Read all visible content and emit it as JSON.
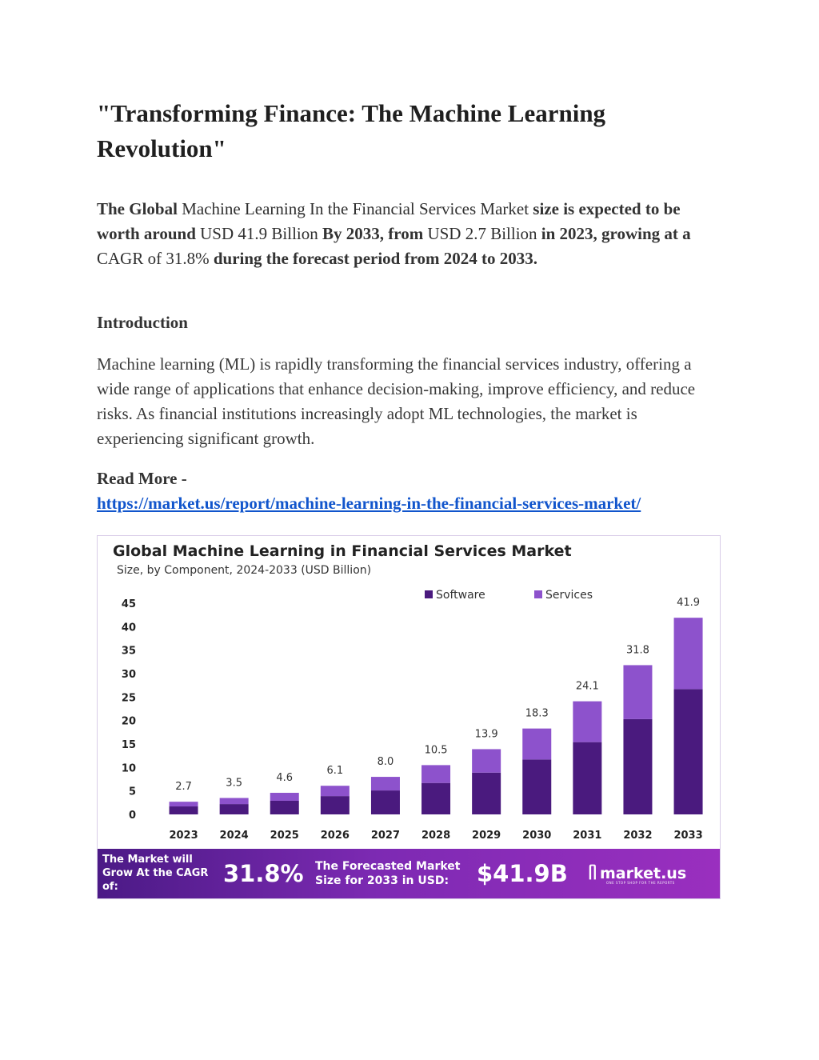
{
  "article": {
    "title": "\"Transforming Finance: The Machine Learning Revolution\"",
    "summary": {
      "p1": "The Global",
      "p2": " Machine Learning In the Financial Services Market ",
      "p3": "size is expected to be worth around",
      "p4": " USD 41.9 Billion ",
      "p5": "By 2033, from",
      "p6": " USD 2.7 Billion ",
      "p7": "in 2023, growing at a",
      "p8": " CAGR of 31.8% ",
      "p9": "during the forecast period from 2024 to 2033."
    },
    "intro_heading": "Introduction",
    "intro_text": "Machine learning (ML) is rapidly transforming the financial services industry, offering a wide range of applications that enhance decision-making, improve efficiency, and reduce risks. As financial institutions increasingly adopt ML technologies, the market is experiencing significant growth.",
    "read_more": "Read More -",
    "link": "https://market.us/report/machine-learning-in-the-financial-services-market/"
  },
  "infographic": {
    "title": "Global Machine Learning in Financial Services Market",
    "subtitle": "Size, by Component, 2024-2033 (USD Billion)",
    "banner": {
      "cagr_label": "The Market will Grow At the CAGR of:",
      "cagr_value": "31.8%",
      "forecast_label": "The Forecasted Market Size for 2033 in USD:",
      "forecast_value": "$41.9B",
      "brand": "market.us",
      "brand_tagline": "ONE STOP SHOP FOR THE REPORTS",
      "brand_icon": "market-us-logo-icon"
    }
  },
  "chart_data": {
    "type": "bar",
    "stacked": true,
    "categories": [
      "2023",
      "2024",
      "2025",
      "2026",
      "2027",
      "2028",
      "2029",
      "2030",
      "2031",
      "2032",
      "2033"
    ],
    "series": [
      {
        "name": "Software",
        "color": "#4a1a7e",
        "values": [
          1.7,
          2.2,
          2.9,
          3.9,
          5.1,
          6.7,
          8.9,
          11.7,
          15.4,
          20.3,
          26.7
        ]
      },
      {
        "name": "Services",
        "color": "#8d52cc",
        "values": [
          1.0,
          1.3,
          1.7,
          2.2,
          2.9,
          3.8,
          5.0,
          6.6,
          8.7,
          11.5,
          15.2
        ]
      }
    ],
    "totals": [
      "2.7",
      "3.5",
      "4.6",
      "6.1",
      "8.0",
      "10.5",
      "13.9",
      "18.3",
      "24.1",
      "31.8",
      "41.9"
    ],
    "yticks": [
      0,
      5,
      10,
      15,
      20,
      25,
      30,
      35,
      40,
      45
    ],
    "ylim": [
      0,
      45
    ],
    "legend_position": "top-right",
    "grid": false
  }
}
